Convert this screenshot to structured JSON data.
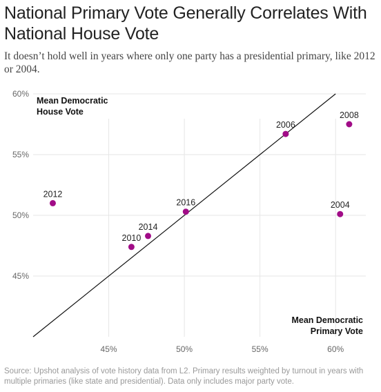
{
  "title": "National Primary Vote Generally Correlates With National House Vote",
  "subtitle": "It doesn’t hold well in years where only one party has a presidential primary, like 2012 or 2004.",
  "source": "Source: Upshot analysis of vote history data from L2. Primary results weighted by turnout in years with multiple primaries (like state and presidential). Data only includes major party vote.",
  "colors": {
    "point": "#a10c87",
    "grid": "#e6e6e6",
    "line": "#111111"
  },
  "chart_data": {
    "type": "scatter",
    "xlabel_lines": [
      "Mean Democratic",
      "Primary Vote"
    ],
    "ylabel_lines": [
      "Mean Democratic",
      "House Vote"
    ],
    "xlim": [
      40,
      62
    ],
    "ylim": [
      40,
      60
    ],
    "x_ticks": [
      45,
      50,
      55,
      60
    ],
    "x_tick_labels": [
      "45%",
      "50%",
      "55%",
      "60%"
    ],
    "y_ticks": [
      45,
      50,
      55,
      60
    ],
    "y_tick_labels": [
      "45%",
      "50%",
      "55%",
      "60%"
    ],
    "grid": true,
    "reference_line": {
      "type": "diagonal",
      "equation": "y = x"
    },
    "points": [
      {
        "label": "2004",
        "x": 60.3,
        "y": 50.1
      },
      {
        "label": "2006",
        "x": 56.7,
        "y": 56.7
      },
      {
        "label": "2008",
        "x": 60.9,
        "y": 57.5
      },
      {
        "label": "2010",
        "x": 46.5,
        "y": 47.4
      },
      {
        "label": "2012",
        "x": 41.3,
        "y": 51.0
      },
      {
        "label": "2014",
        "x": 47.6,
        "y": 48.3
      },
      {
        "label": "2016",
        "x": 50.1,
        "y": 50.3
      }
    ]
  }
}
